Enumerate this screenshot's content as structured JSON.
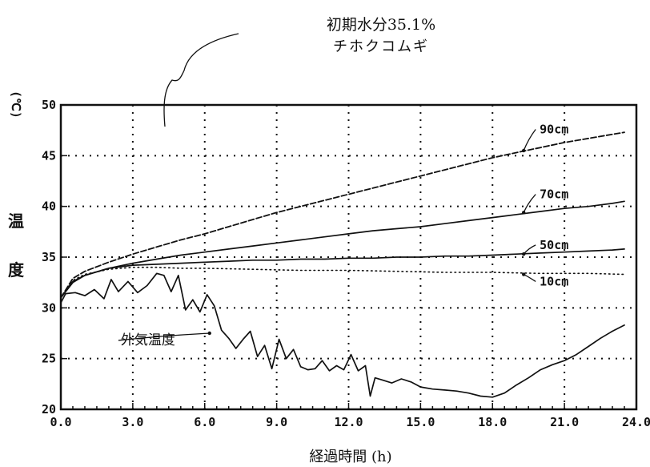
{
  "chart_data": {
    "type": "line",
    "annotation": {
      "line1": "初期水分35.1%",
      "line2": "チホクコムギ"
    },
    "xlabel": "経過時間 (h)",
    "ylabel_unit": "(℃)",
    "ylabel_chars": [
      "温",
      "度"
    ],
    "xlim": [
      0,
      24
    ],
    "ylim": [
      20,
      50
    ],
    "x_ticks": [
      {
        "v": 0,
        "label": "0.0"
      },
      {
        "v": 3,
        "label": "3.0"
      },
      {
        "v": 6,
        "label": "6.0"
      },
      {
        "v": 9,
        "label": "9.0"
      },
      {
        "v": 12,
        "label": "12.0"
      },
      {
        "v": 15,
        "label": "15.0"
      },
      {
        "v": 18,
        "label": "18.0"
      },
      {
        "v": 21,
        "label": "21.0"
      },
      {
        "v": 24,
        "label": "24.0"
      }
    ],
    "y_ticks": [
      {
        "v": 20,
        "label": "20"
      },
      {
        "v": 25,
        "label": "25"
      },
      {
        "v": 30,
        "label": "30"
      },
      {
        "v": 35,
        "label": "35"
      },
      {
        "v": 40,
        "label": "40"
      },
      {
        "v": 45,
        "label": "45"
      },
      {
        "v": 50,
        "label": "50"
      }
    ],
    "grid": true,
    "series": [
      {
        "name": "90cm",
        "style": "dashed",
        "x": [
          0,
          0.5,
          1,
          2,
          3,
          4,
          5,
          6,
          7,
          8,
          9,
          10,
          11,
          12,
          13,
          14,
          15,
          16,
          17,
          18,
          19,
          20,
          21,
          22,
          23,
          23.5
        ],
        "y": [
          31,
          32.9,
          33.6,
          34.5,
          35.3,
          36.0,
          36.7,
          37.3,
          38.0,
          38.7,
          39.4,
          40.0,
          40.6,
          41.2,
          41.8,
          42.4,
          43.0,
          43.6,
          44.2,
          44.8,
          45.3,
          45.8,
          46.3,
          46.7,
          47.1,
          47.3
        ],
        "label": {
          "text": "90cm",
          "x": 19.9,
          "y": 47.2,
          "ax": 19.3,
          "ay": 45.5
        }
      },
      {
        "name": "70cm",
        "style": "solid",
        "x": [
          0,
          0.5,
          1,
          2,
          3,
          4,
          5,
          6,
          7,
          8,
          9,
          10,
          11,
          12,
          13,
          14,
          15,
          16,
          17,
          18,
          19,
          20,
          21,
          22,
          23,
          23.5
        ],
        "y": [
          31,
          32.6,
          33.2,
          33.9,
          34.4,
          34.8,
          35.2,
          35.5,
          35.8,
          36.1,
          36.4,
          36.7,
          37.0,
          37.3,
          37.6,
          37.8,
          38.0,
          38.3,
          38.6,
          38.9,
          39.2,
          39.5,
          39.8,
          40.0,
          40.3,
          40.5
        ],
        "label": {
          "text": "70cm",
          "x": 19.9,
          "y": 40.8,
          "ax": 19.3,
          "ay": 39.4
        }
      },
      {
        "name": "50cm",
        "style": "solid",
        "x": [
          0,
          0.5,
          1,
          2,
          3,
          4,
          5,
          6,
          7,
          8,
          9,
          10,
          11,
          12,
          13,
          14,
          15,
          16,
          17,
          18,
          19,
          20,
          21,
          22,
          23,
          23.5
        ],
        "y": [
          31,
          32.5,
          33.2,
          33.9,
          34.2,
          34.3,
          34.4,
          34.5,
          34.6,
          34.7,
          34.7,
          34.8,
          34.8,
          34.9,
          34.9,
          35.0,
          35.0,
          35.1,
          35.1,
          35.2,
          35.3,
          35.4,
          35.5,
          35.6,
          35.7,
          35.8
        ],
        "label": {
          "text": "50cm",
          "x": 19.9,
          "y": 35.8,
          "ax": 19.3,
          "ay": 35.3
        }
      },
      {
        "name": "10cm",
        "style": "dotted",
        "x": [
          0,
          0.5,
          1,
          2,
          3,
          4,
          5,
          6,
          8,
          10,
          12,
          14,
          16,
          18,
          20,
          22,
          23.5
        ],
        "y": [
          31,
          32.7,
          33.3,
          33.8,
          34.0,
          34.0,
          33.9,
          33.9,
          33.8,
          33.7,
          33.7,
          33.6,
          33.5,
          33.5,
          33.4,
          33.4,
          33.3
        ],
        "label": {
          "text": "10cm",
          "x": 19.9,
          "y": 32.2,
          "ax": 19.3,
          "ay": 33.3
        }
      },
      {
        "name": "外気温度",
        "style": "solid",
        "x": [
          0,
          0.2,
          0.6,
          1,
          1.4,
          1.8,
          2.1,
          2.4,
          2.8,
          3.2,
          3.6,
          4.0,
          4.3,
          4.6,
          4.9,
          5.2,
          5.5,
          5.8,
          6.1,
          6.4,
          6.7,
          7.0,
          7.3,
          7.6,
          7.9,
          8.2,
          8.5,
          8.8,
          9.1,
          9.4,
          9.7,
          10.0,
          10.3,
          10.6,
          10.9,
          11.2,
          11.5,
          11.8,
          12.1,
          12.4,
          12.7,
          12.9,
          13.1,
          13.4,
          13.8,
          14.2,
          14.6,
          15.0,
          15.5,
          16.0,
          16.5,
          17.0,
          17.5,
          18.0,
          18.5,
          19.0,
          19.5,
          20.0,
          20.5,
          21.0,
          21.5,
          22.0,
          22.5,
          23.0,
          23.5
        ],
        "y": [
          30.5,
          31.4,
          31.5,
          31.2,
          31.8,
          30.9,
          32.8,
          31.6,
          32.6,
          31.5,
          32.2,
          33.4,
          33.2,
          31.6,
          33.2,
          29.8,
          30.8,
          29.6,
          31.3,
          30.2,
          27.8,
          27.0,
          26.0,
          26.9,
          27.7,
          25.2,
          26.3,
          24.0,
          26.9,
          25.0,
          25.9,
          24.2,
          23.9,
          24.0,
          24.8,
          23.8,
          24.3,
          23.9,
          25.4,
          23.8,
          24.3,
          21.3,
          23.1,
          22.9,
          22.6,
          23.0,
          22.7,
          22.2,
          22.0,
          21.9,
          21.8,
          21.6,
          21.3,
          21.2,
          21.6,
          22.4,
          23.1,
          23.9,
          24.4,
          24.8,
          25.4,
          26.2,
          27.0,
          27.7,
          28.3
        ],
        "label": {
          "text": "外気温度",
          "x": 2.5,
          "y": 26.4,
          "ax": 6.2,
          "ay": 27.5
        }
      }
    ]
  }
}
